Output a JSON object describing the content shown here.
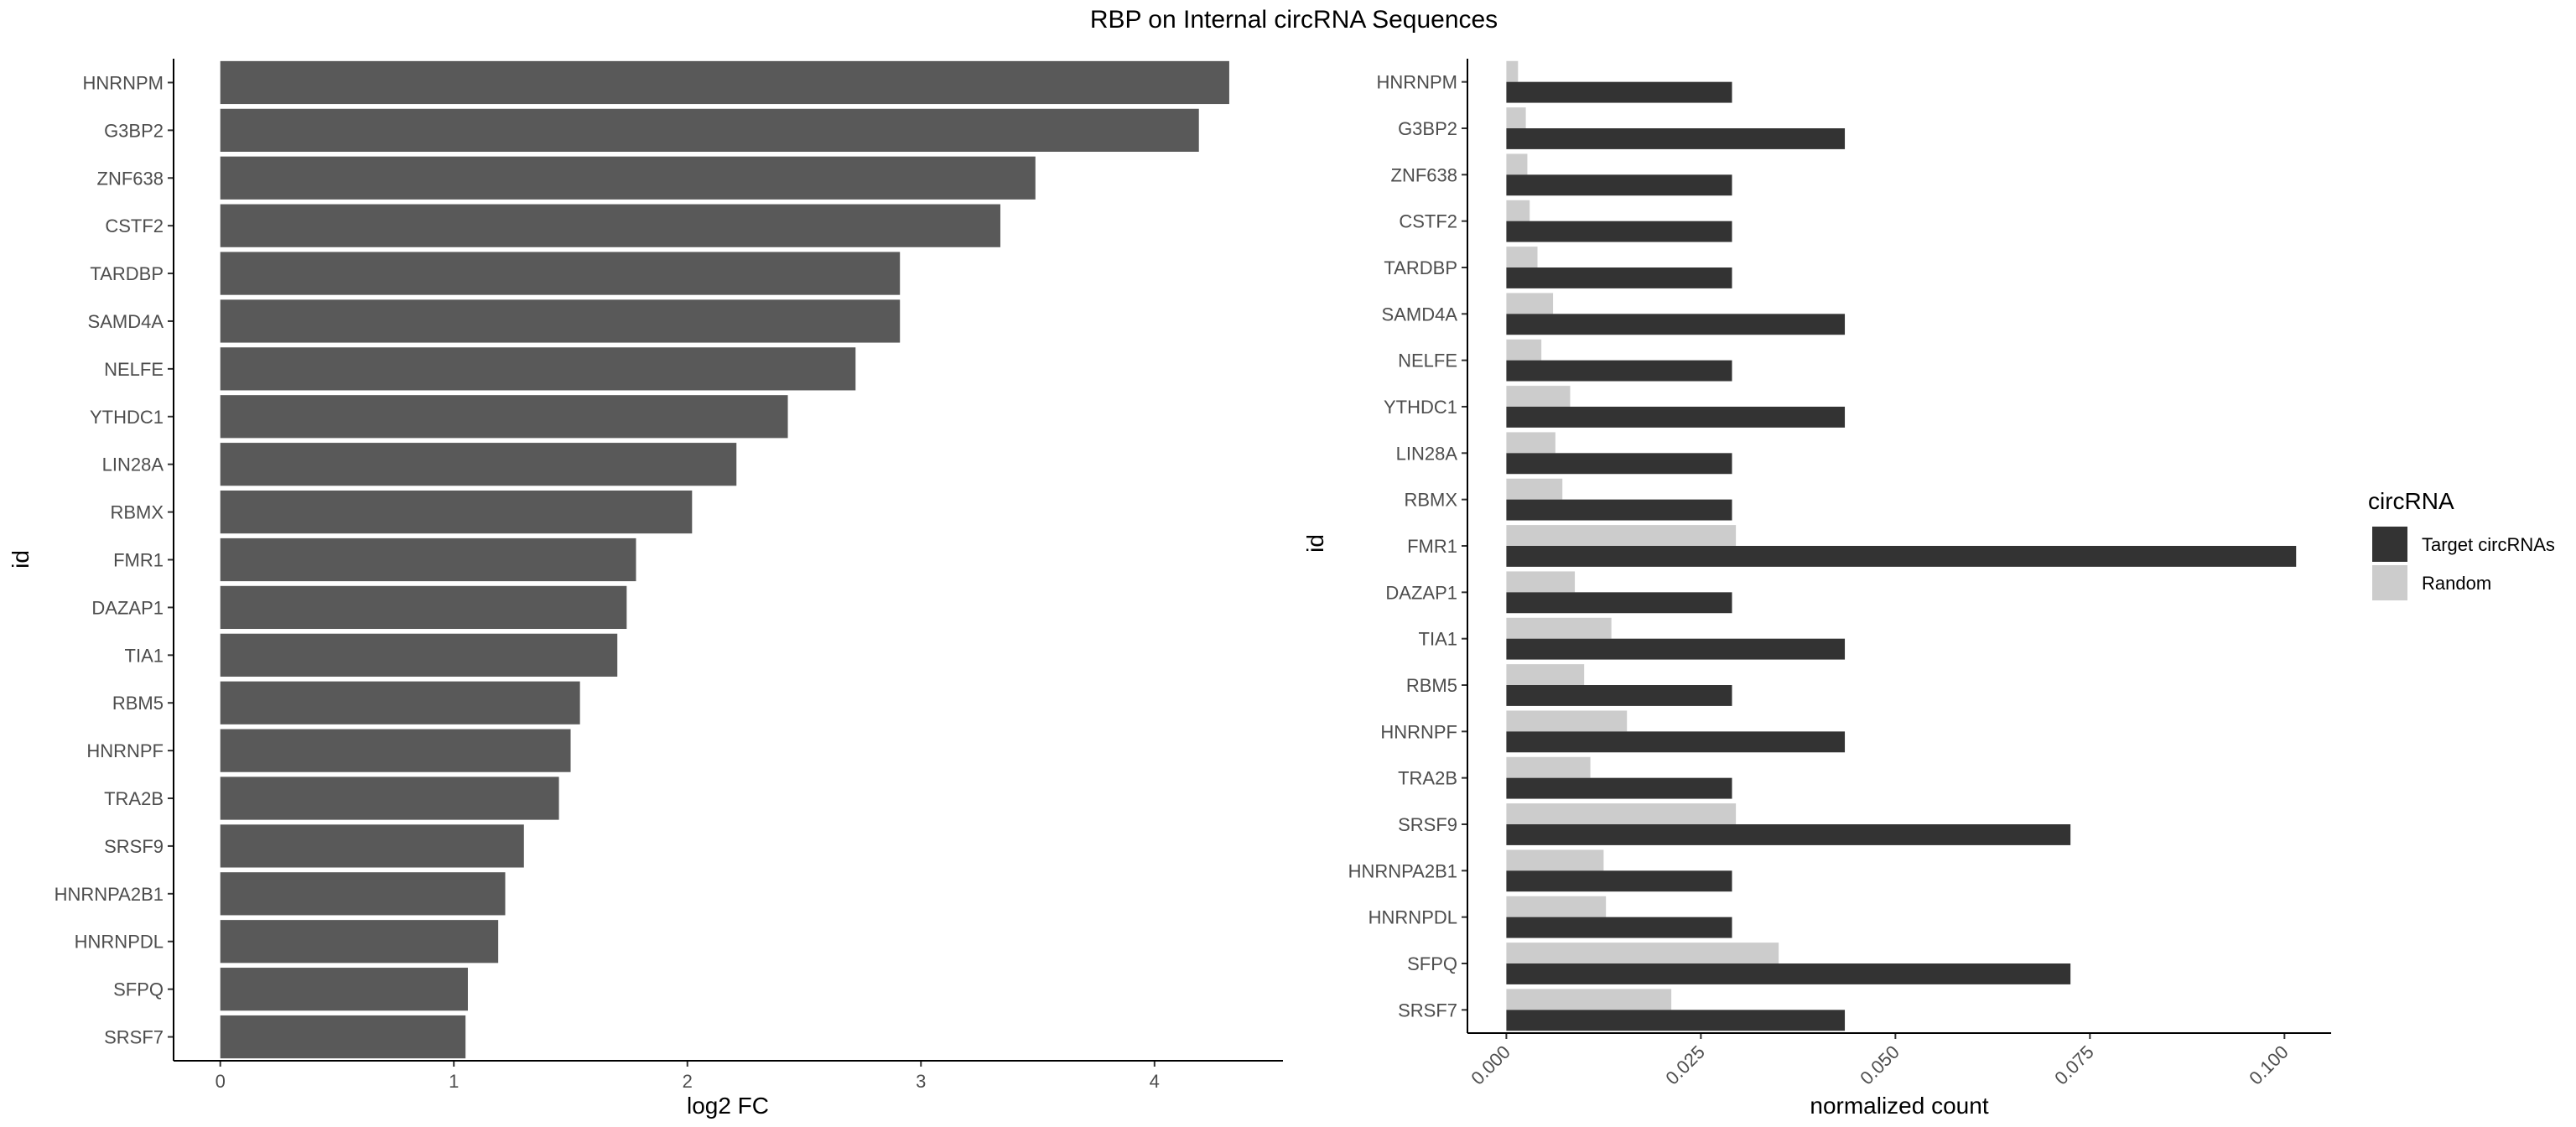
{
  "title": "RBP on Internal circRNA Sequences",
  "colors": {
    "left_bar": "#595959",
    "target": "#333333",
    "random": "#cccccc",
    "axis": "#000000",
    "tick_text": "#4d4d4d"
  },
  "chart_data": [
    {
      "type": "bar",
      "orientation": "horizontal",
      "title": "",
      "xlabel": "log2 FC",
      "ylabel": "id",
      "xlim": [
        -0.2,
        4.55
      ],
      "x_ticks": [
        "0",
        "1",
        "2",
        "3",
        "4"
      ],
      "categories": [
        "HNRNPM",
        "G3BP2",
        "ZNF638",
        "CSTF2",
        "TARDBP",
        "SAMD4A",
        "NELFE",
        "YTHDC1",
        "LIN28A",
        "RBMX",
        "FMR1",
        "DAZAP1",
        "TIA1",
        "RBM5",
        "HNRNPF",
        "TRA2B",
        "SRSF9",
        "HNRNPA2B1",
        "HNRNPDL",
        "SFPQ",
        "SRSF7"
      ],
      "values": [
        4.32,
        4.19,
        3.49,
        3.34,
        2.91,
        2.91,
        2.72,
        2.43,
        2.21,
        2.02,
        1.78,
        1.74,
        1.7,
        1.54,
        1.5,
        1.45,
        1.3,
        1.22,
        1.19,
        1.06,
        1.05
      ],
      "grid": false
    },
    {
      "type": "bar",
      "orientation": "horizontal",
      "title": "",
      "xlabel": "normalized count",
      "ylabel": "id",
      "xlim": [
        -0.005,
        0.106
      ],
      "x_ticks": [
        "0.000",
        "0.025",
        "0.050",
        "0.075",
        "0.100"
      ],
      "categories": [
        "HNRNPM",
        "G3BP2",
        "ZNF638",
        "CSTF2",
        "TARDBP",
        "SAMD4A",
        "NELFE",
        "YTHDC1",
        "LIN28A",
        "RBMX",
        "FMR1",
        "DAZAP1",
        "TIA1",
        "RBM5",
        "HNRNPF",
        "TRA2B",
        "SRSF9",
        "HNRNPA2B1",
        "HNRNPDL",
        "SFPQ",
        "SRSF7"
      ],
      "series": [
        {
          "name": "Target circRNAs",
          "values": [
            0.029,
            0.0435,
            0.029,
            0.029,
            0.029,
            0.0435,
            0.029,
            0.0435,
            0.029,
            0.029,
            0.1015,
            0.029,
            0.0435,
            0.029,
            0.0435,
            0.029,
            0.0725,
            0.029,
            0.029,
            0.0725,
            0.0435
          ]
        },
        {
          "name": "Random",
          "values": [
            0.0015,
            0.0025,
            0.0027,
            0.003,
            0.004,
            0.006,
            0.0045,
            0.0082,
            0.0063,
            0.0072,
            0.0295,
            0.0088,
            0.0135,
            0.01,
            0.0155,
            0.0108,
            0.0295,
            0.0125,
            0.0128,
            0.035,
            0.0212
          ]
        }
      ],
      "legend": {
        "title": "circRNA",
        "position": "right",
        "entries": [
          "Target circRNAs",
          "Random"
        ]
      },
      "grid": false
    }
  ]
}
